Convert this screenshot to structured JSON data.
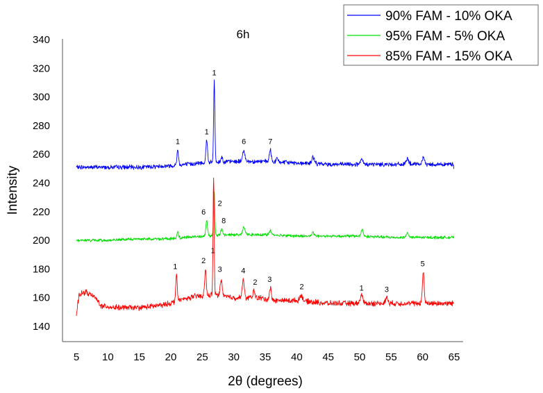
{
  "chart_data": {
    "type": "line",
    "title": "6h",
    "xlabel": "2θ (degrees)",
    "ylabel": "Intensity",
    "xlim": [
      3,
      67
    ],
    "ylim": [
      130,
      340
    ],
    "xticks": [
      5,
      10,
      15,
      20,
      25,
      30,
      35,
      40,
      45,
      50,
      55,
      60,
      65
    ],
    "yticks": [
      140,
      160,
      180,
      200,
      220,
      240,
      260,
      280,
      300,
      320,
      340
    ],
    "grid": false,
    "legend_position": "top-right",
    "series": [
      {
        "name": "90% FAM - 10% OKA",
        "color": "#0000ff",
        "baseline": [
          [
            5,
            251
          ],
          [
            10,
            251
          ],
          [
            15,
            251
          ],
          [
            20,
            252
          ],
          [
            25,
            254
          ],
          [
            30,
            255
          ],
          [
            35,
            255
          ],
          [
            40,
            254
          ],
          [
            45,
            253
          ],
          [
            50,
            253
          ],
          [
            55,
            253
          ],
          [
            60,
            253
          ],
          [
            65,
            253
          ]
        ],
        "peaks": [
          [
            21.1,
            263,
            0.13
          ],
          [
            25.7,
            270,
            0.13
          ],
          [
            26.9,
            311,
            0.1
          ],
          [
            28.1,
            258,
            0.14
          ],
          [
            31.6,
            262,
            0.2
          ],
          [
            35.8,
            263,
            0.15
          ],
          [
            36.9,
            257,
            0.15
          ],
          [
            42.6,
            258,
            0.2
          ],
          [
            50.3,
            256,
            0.2
          ],
          [
            57.6,
            257,
            0.2
          ],
          [
            60.1,
            257,
            0.2
          ]
        ],
        "noise": 1.2,
        "end_value": 250
      },
      {
        "name": "95% FAM - 5% OKA",
        "color": "#00e000",
        "baseline": [
          [
            5,
            200
          ],
          [
            10,
            200
          ],
          [
            15,
            201
          ],
          [
            20,
            201
          ],
          [
            25,
            203
          ],
          [
            30,
            204
          ],
          [
            35,
            204
          ],
          [
            40,
            203
          ],
          [
            45,
            203
          ],
          [
            50,
            203
          ],
          [
            55,
            202
          ],
          [
            60,
            202
          ],
          [
            65,
            202
          ]
        ],
        "peaks": [
          [
            21.1,
            206,
            0.13
          ],
          [
            25.7,
            214,
            0.13
          ],
          [
            26.9,
            234,
            0.1
          ],
          [
            28.1,
            208,
            0.14
          ],
          [
            31.6,
            209,
            0.2
          ],
          [
            35.8,
            207,
            0.15
          ],
          [
            42.6,
            205,
            0.2
          ],
          [
            50.4,
            208,
            0.15
          ],
          [
            57.6,
            205,
            0.2
          ]
        ],
        "noise": 0.8,
        "end_value": 202
      },
      {
        "name": "85% FAM - 15% OKA",
        "color": "#ff0000",
        "baseline": [
          [
            5,
            147
          ],
          [
            5.4,
            162
          ],
          [
            6.5,
            164
          ],
          [
            8,
            160
          ],
          [
            9,
            154
          ],
          [
            12,
            153
          ],
          [
            15,
            153
          ],
          [
            19,
            155
          ],
          [
            22,
            159
          ],
          [
            24,
            161
          ],
          [
            27,
            162
          ],
          [
            30,
            160
          ],
          [
            34,
            160
          ],
          [
            36,
            158
          ],
          [
            40,
            158
          ],
          [
            45,
            156
          ],
          [
            50,
            156
          ],
          [
            55,
            156
          ],
          [
            60,
            156
          ],
          [
            65,
            156
          ]
        ],
        "peaks": [
          [
            20.9,
            176,
            0.12
          ],
          [
            25.5,
            180,
            0.12
          ],
          [
            26.8,
            245,
            0.09
          ],
          [
            28.0,
            173,
            0.15
          ],
          [
            31.5,
            173,
            0.15
          ],
          [
            33.2,
            165,
            0.15
          ],
          [
            35.8,
            167,
            0.15
          ],
          [
            40.7,
            162,
            0.2
          ],
          [
            50.3,
            162,
            0.2
          ],
          [
            54.3,
            160,
            0.2
          ],
          [
            60.1,
            178,
            0.14
          ]
        ],
        "noise": 1.5,
        "end_value": 156
      }
    ],
    "annotations": [
      {
        "text": "1",
        "x": 21.1,
        "y": 267
      },
      {
        "text": "1",
        "x": 25.7,
        "y": 274
      },
      {
        "text": "1",
        "x": 26.9,
        "y": 315
      },
      {
        "text": "6",
        "x": 31.6,
        "y": 267
      },
      {
        "text": "7",
        "x": 35.8,
        "y": 267
      },
      {
        "text": "6",
        "x": 25.2,
        "y": 218
      },
      {
        "text": "2",
        "x": 27.8,
        "y": 224
      },
      {
        "text": "8",
        "x": 28.4,
        "y": 212
      },
      {
        "text": "1",
        "x": 26.7,
        "y": 191
      },
      {
        "text": "1",
        "x": 20.7,
        "y": 180
      },
      {
        "text": "2",
        "x": 25.2,
        "y": 184
      },
      {
        "text": "3",
        "x": 27.8,
        "y": 178
      },
      {
        "text": "4",
        "x": 31.5,
        "y": 177
      },
      {
        "text": "2",
        "x": 33.4,
        "y": 169
      },
      {
        "text": "3",
        "x": 35.7,
        "y": 171
      },
      {
        "text": "2",
        "x": 40.8,
        "y": 166
      },
      {
        "text": "1",
        "x": 50.3,
        "y": 165
      },
      {
        "text": "3",
        "x": 54.3,
        "y": 164
      },
      {
        "text": "5",
        "x": 60.0,
        "y": 182
      }
    ]
  }
}
